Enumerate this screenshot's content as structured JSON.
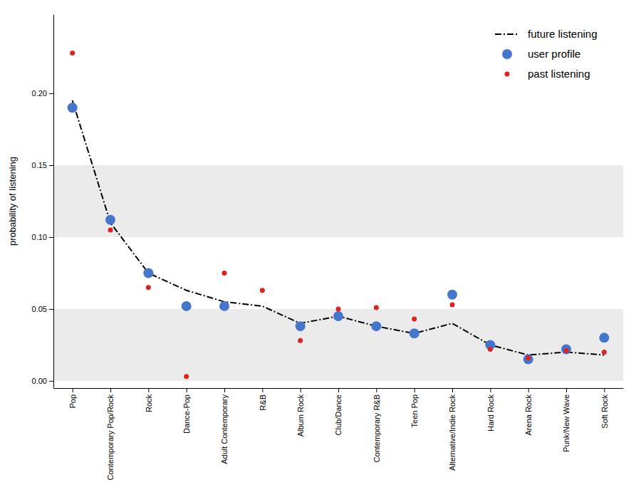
{
  "chart_data": {
    "type": "line",
    "categories": [
      "Pop",
      "Contemporary Pop/Rock",
      "Rock",
      "Dance-Pop",
      "Adult Contemporary",
      "R&B",
      "Album Rock",
      "Club/Dance",
      "Contemporary R&B",
      "Teen Pop",
      "Alternative/Indie Rock",
      "Hard Rock",
      "Arena Rock",
      "Punk/New Wave",
      "Soft Rock"
    ],
    "series": [
      {
        "name": "future listening",
        "type": "line",
        "color": "#000000",
        "line_style": "dashdot",
        "values": [
          0.195,
          0.11,
          0.075,
          0.063,
          0.055,
          0.052,
          0.04,
          0.045,
          0.038,
          0.033,
          0.04,
          0.025,
          0.018,
          0.02,
          0.018
        ]
      },
      {
        "name": "user profile",
        "type": "scatter",
        "color": "#4477CC",
        "marker": "circle",
        "values": [
          0.19,
          0.112,
          0.075,
          0.052,
          0.052,
          null,
          0.038,
          0.045,
          0.038,
          0.033,
          0.06,
          0.025,
          0.015,
          0.022,
          0.03
        ]
      },
      {
        "name": "past listening",
        "type": "scatter",
        "color": "#DD2222",
        "marker": "circle",
        "values": [
          0.228,
          0.105,
          0.065,
          0.003,
          0.075,
          0.063,
          0.028,
          0.05,
          0.051,
          0.043,
          0.053,
          0.022,
          0.016,
          0.021,
          0.02
        ]
      }
    ],
    "y_label": "probability of listening",
    "ylim": [
      -0.005,
      0.255
    ],
    "yticks": [
      {
        "value": 0,
        "label": "0.00"
      },
      0.05,
      {
        "value": 0.1,
        "label": "0.10"
      },
      0.15,
      {
        "value": 0.2,
        "label": "0.20"
      }
    ],
    "grid": true,
    "legend": "upper right"
  }
}
